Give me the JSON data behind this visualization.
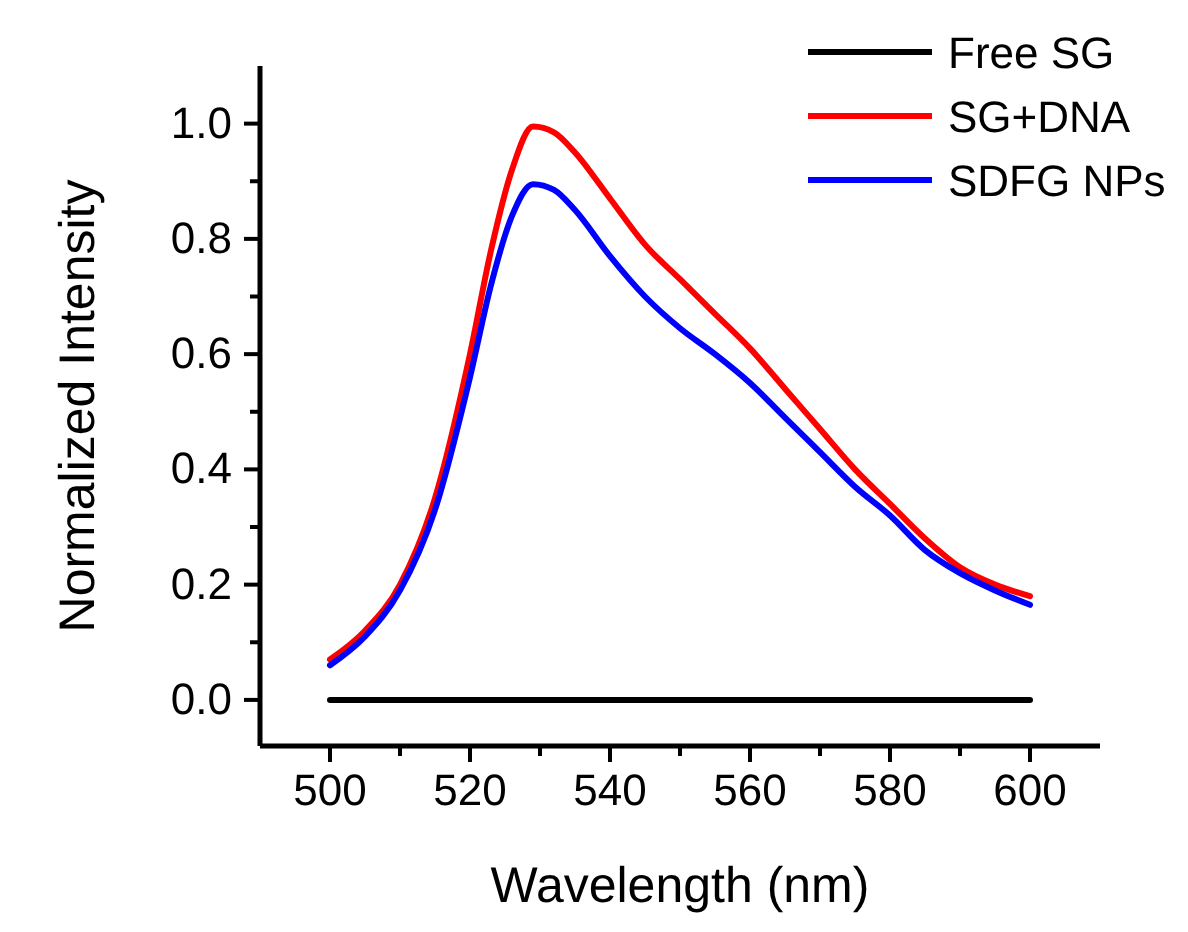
{
  "chart_data": {
    "type": "line",
    "xlabel": "Wavelength (nm)",
    "ylabel": "Normalized Intensity",
    "xlim": [
      490,
      610
    ],
    "ylim": [
      -0.08,
      1.1
    ],
    "xticks": [
      500,
      {
        "value": 510,
        "label": null
      },
      520,
      {
        "value": 530,
        "label": null
      },
      540,
      {
        "value": 550,
        "label": null
      },
      560,
      {
        "value": 570,
        "label": null
      },
      580,
      {
        "value": 590,
        "label": null
      },
      600
    ],
    "yticks": [
      {
        "value": 0,
        "label": "0.0"
      },
      {
        "value": 0.1,
        "label": null
      },
      {
        "value": 0.2,
        "label": "0.2"
      },
      {
        "value": 0.3,
        "label": null
      },
      {
        "value": 0.4,
        "label": "0.4"
      },
      {
        "value": 0.5,
        "label": null
      },
      {
        "value": 0.6,
        "label": "0.6"
      },
      {
        "value": 0.7,
        "label": null
      },
      {
        "value": 0.8,
        "label": "0.8"
      },
      {
        "value": 0.9,
        "label": null
      },
      {
        "value": 1,
        "label": "1.0"
      }
    ],
    "legend": "top right",
    "line_style": "solid",
    "marker": "none",
    "grid": false,
    "series": [
      {
        "name": "Free SG",
        "color": "#000000",
        "x": [
          500,
          600
        ],
        "values": [
          0,
          0
        ]
      },
      {
        "name": "SG+DNA",
        "color": "#ff0000",
        "x": [
          500,
          505,
          510,
          515,
          520,
          523,
          526,
          529,
          532,
          535,
          540,
          545,
          550,
          555,
          560,
          565,
          570,
          575,
          580,
          585,
          590,
          595,
          600
        ],
        "values": [
          0.07,
          0.12,
          0.2,
          0.35,
          0.6,
          0.78,
          0.92,
          0.995,
          0.985,
          0.95,
          0.87,
          0.79,
          0.73,
          0.67,
          0.61,
          0.54,
          0.47,
          0.4,
          0.34,
          0.28,
          0.23,
          0.2,
          0.18
        ]
      },
      {
        "name": "SDFG NPs",
        "color": "#0000ff",
        "x": [
          500,
          505,
          510,
          515,
          520,
          523,
          526,
          529,
          532,
          535,
          540,
          545,
          550,
          555,
          560,
          565,
          570,
          575,
          580,
          585,
          590,
          595,
          600
        ],
        "values": [
          0.06,
          0.11,
          0.19,
          0.33,
          0.56,
          0.72,
          0.84,
          0.895,
          0.885,
          0.85,
          0.77,
          0.7,
          0.645,
          0.6,
          0.55,
          0.49,
          0.43,
          0.37,
          0.32,
          0.26,
          0.22,
          0.19,
          0.165
        ]
      }
    ]
  }
}
